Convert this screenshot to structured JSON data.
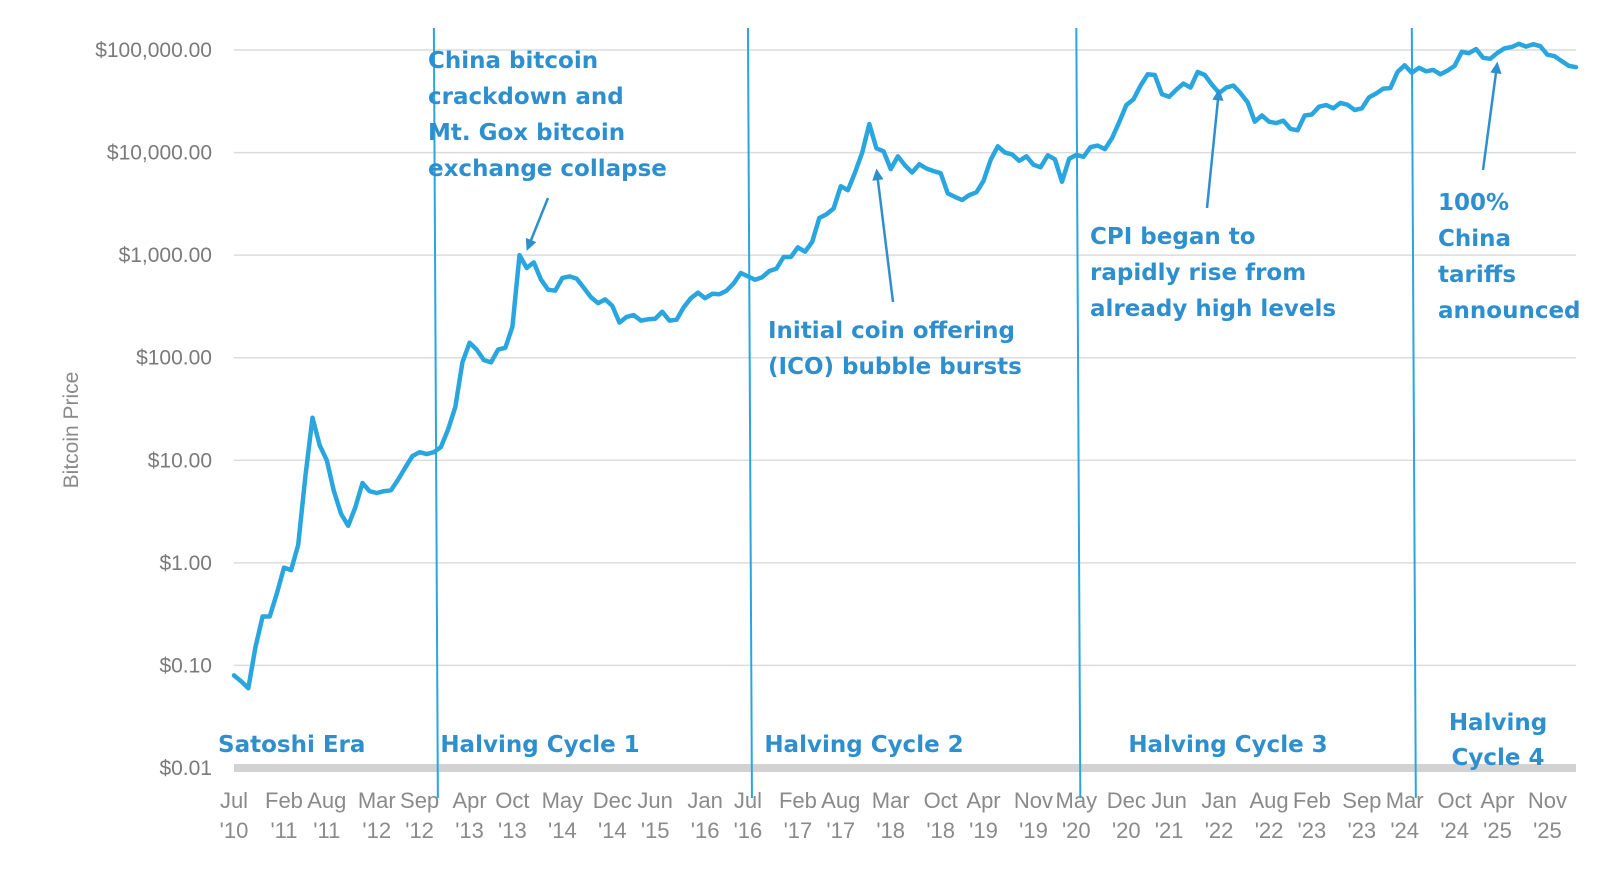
{
  "colors": {
    "line": "#2aa6df",
    "halving": "#2aa6df",
    "annotation": "#2e8fcf",
    "grid": "#dcdcdc",
    "baseline": "#d2d2d2"
  },
  "chart_data": {
    "type": "line",
    "ylabel": "Bitcoin Price",
    "yscale": "log",
    "ylim": [
      0.01,
      100000
    ],
    "xlim": [
      "2010-07",
      "2026-03"
    ],
    "grid": true,
    "y_ticks": [
      {
        "value": 100000,
        "label": "$100,000.00"
      },
      {
        "value": 10000,
        "label": "$10,000.00"
      },
      {
        "value": 1000,
        "label": "$1,000.00"
      },
      {
        "value": 100,
        "label": "$100.00"
      },
      {
        "value": 10,
        "label": "$10.00"
      },
      {
        "value": 1,
        "label": "$1.00"
      },
      {
        "value": 0.1,
        "label": "$0.10"
      },
      {
        "value": 0.01,
        "label": "$0.01"
      }
    ],
    "x_ticks": [
      {
        "date": "2010-07",
        "month": "Jul",
        "year": "'10"
      },
      {
        "date": "2011-02",
        "month": "Feb",
        "year": "'11"
      },
      {
        "date": "2011-08",
        "month": "Aug",
        "year": "'11"
      },
      {
        "date": "2012-03",
        "month": "Mar",
        "year": "'12"
      },
      {
        "date": "2012-09",
        "month": "Sep",
        "year": "'12"
      },
      {
        "date": "2013-04",
        "month": "Apr",
        "year": "'13"
      },
      {
        "date": "2013-10",
        "month": "Oct",
        "year": "'13"
      },
      {
        "date": "2014-05",
        "month": "May",
        "year": "'14"
      },
      {
        "date": "2014-12",
        "month": "Dec",
        "year": "'14"
      },
      {
        "date": "2015-06",
        "month": "Jun",
        "year": "'15"
      },
      {
        "date": "2016-01",
        "month": "Jan",
        "year": "'16"
      },
      {
        "date": "2016-07",
        "month": "Jul",
        "year": "'16"
      },
      {
        "date": "2017-02",
        "month": "Feb",
        "year": "'17"
      },
      {
        "date": "2017-08",
        "month": "Aug",
        "year": "'17"
      },
      {
        "date": "2018-03",
        "month": "Mar",
        "year": "'18"
      },
      {
        "date": "2018-10",
        "month": "Oct",
        "year": "'18"
      },
      {
        "date": "2019-04",
        "month": "Apr",
        "year": "'19"
      },
      {
        "date": "2019-11",
        "month": "Nov",
        "year": "'19"
      },
      {
        "date": "2020-05",
        "month": "May",
        "year": "'20"
      },
      {
        "date": "2020-12",
        "month": "Dec",
        "year": "'20"
      },
      {
        "date": "2021-06",
        "month": "Jun",
        "year": "'21"
      },
      {
        "date": "2022-01",
        "month": "Jan",
        "year": "'22"
      },
      {
        "date": "2022-08",
        "month": "Aug",
        "year": "'22"
      },
      {
        "date": "2023-02",
        "month": "Feb",
        "year": "'23"
      },
      {
        "date": "2023-09",
        "month": "Sep",
        "year": "'23"
      },
      {
        "date": "2024-03",
        "month": "Mar",
        "year": "'24"
      },
      {
        "date": "2024-10",
        "month": "Oct",
        "year": "'24"
      },
      {
        "date": "2025-04",
        "month": "Apr",
        "year": "'25"
      },
      {
        "date": "2025-11",
        "month": "Nov",
        "year": "'25"
      }
    ],
    "series": [
      {
        "points": [
          {
            "x": "2010-07",
            "y": 0.08
          },
          {
            "x": "2010-08",
            "y": 0.07
          },
          {
            "x": "2010-09",
            "y": 0.06
          },
          {
            "x": "2010-10",
            "y": 0.15
          },
          {
            "x": "2010-11",
            "y": 0.3
          },
          {
            "x": "2010-12",
            "y": 0.3
          },
          {
            "x": "2011-01",
            "y": 0.5
          },
          {
            "x": "2011-02",
            "y": 0.9
          },
          {
            "x": "2011-03",
            "y": 0.85
          },
          {
            "x": "2011-04",
            "y": 1.5
          },
          {
            "x": "2011-05",
            "y": 7
          },
          {
            "x": "2011-06",
            "y": 26
          },
          {
            "x": "2011-07",
            "y": 14
          },
          {
            "x": "2011-08",
            "y": 10
          },
          {
            "x": "2011-09",
            "y": 5
          },
          {
            "x": "2011-10",
            "y": 3
          },
          {
            "x": "2011-11",
            "y": 2.3
          },
          {
            "x": "2011-12",
            "y": 3.5
          },
          {
            "x": "2012-01",
            "y": 6
          },
          {
            "x": "2012-02",
            "y": 5
          },
          {
            "x": "2012-03",
            "y": 4.8
          },
          {
            "x": "2012-04",
            "y": 5
          },
          {
            "x": "2012-05",
            "y": 5.1
          },
          {
            "x": "2012-06",
            "y": 6.5
          },
          {
            "x": "2012-07",
            "y": 8.5
          },
          {
            "x": "2012-08",
            "y": 11
          },
          {
            "x": "2012-09",
            "y": 12
          },
          {
            "x": "2012-10",
            "y": 11.5
          },
          {
            "x": "2012-11",
            "y": 12
          },
          {
            "x": "2012-12",
            "y": 13.5
          },
          {
            "x": "2013-01",
            "y": 20
          },
          {
            "x": "2013-02",
            "y": 33
          },
          {
            "x": "2013-03",
            "y": 90
          },
          {
            "x": "2013-04",
            "y": 140
          },
          {
            "x": "2013-05",
            "y": 120
          },
          {
            "x": "2013-06",
            "y": 95
          },
          {
            "x": "2013-07",
            "y": 90
          },
          {
            "x": "2013-08",
            "y": 120
          },
          {
            "x": "2013-09",
            "y": 125
          },
          {
            "x": "2013-10",
            "y": 200
          },
          {
            "x": "2013-11",
            "y": 1000
          },
          {
            "x": "2013-12",
            "y": 750
          },
          {
            "x": "2014-01",
            "y": 850
          },
          {
            "x": "2014-02",
            "y": 580
          },
          {
            "x": "2014-03",
            "y": 460
          },
          {
            "x": "2014-04",
            "y": 450
          },
          {
            "x": "2014-05",
            "y": 600
          },
          {
            "x": "2014-06",
            "y": 620
          },
          {
            "x": "2014-07",
            "y": 590
          },
          {
            "x": "2014-08",
            "y": 480
          },
          {
            "x": "2014-09",
            "y": 390
          },
          {
            "x": "2014-10",
            "y": 340
          },
          {
            "x": "2014-11",
            "y": 370
          },
          {
            "x": "2014-12",
            "y": 320
          },
          {
            "x": "2015-01",
            "y": 220
          },
          {
            "x": "2015-02",
            "y": 250
          },
          {
            "x": "2015-03",
            "y": 260
          },
          {
            "x": "2015-04",
            "y": 230
          },
          {
            "x": "2015-05",
            "y": 237
          },
          {
            "x": "2015-06",
            "y": 240
          },
          {
            "x": "2015-07",
            "y": 280
          },
          {
            "x": "2015-08",
            "y": 230
          },
          {
            "x": "2015-09",
            "y": 235
          },
          {
            "x": "2015-10",
            "y": 310
          },
          {
            "x": "2015-11",
            "y": 380
          },
          {
            "x": "2015-12",
            "y": 430
          },
          {
            "x": "2016-01",
            "y": 380
          },
          {
            "x": "2016-02",
            "y": 420
          },
          {
            "x": "2016-03",
            "y": 415
          },
          {
            "x": "2016-04",
            "y": 450
          },
          {
            "x": "2016-05",
            "y": 530
          },
          {
            "x": "2016-06",
            "y": 670
          },
          {
            "x": "2016-07",
            "y": 620
          },
          {
            "x": "2016-08",
            "y": 575
          },
          {
            "x": "2016-09",
            "y": 610
          },
          {
            "x": "2016-10",
            "y": 700
          },
          {
            "x": "2016-11",
            "y": 740
          },
          {
            "x": "2016-12",
            "y": 960
          },
          {
            "x": "2017-01",
            "y": 960
          },
          {
            "x": "2017-02",
            "y": 1190
          },
          {
            "x": "2017-03",
            "y": 1080
          },
          {
            "x": "2017-04",
            "y": 1350
          },
          {
            "x": "2017-05",
            "y": 2300
          },
          {
            "x": "2017-06",
            "y": 2500
          },
          {
            "x": "2017-07",
            "y": 2850
          },
          {
            "x": "2017-08",
            "y": 4700
          },
          {
            "x": "2017-09",
            "y": 4300
          },
          {
            "x": "2017-10",
            "y": 6400
          },
          {
            "x": "2017-11",
            "y": 10000
          },
          {
            "x": "2017-12",
            "y": 19000
          },
          {
            "x": "2018-01",
            "y": 11000
          },
          {
            "x": "2018-02",
            "y": 10300
          },
          {
            "x": "2018-03",
            "y": 6900
          },
          {
            "x": "2018-04",
            "y": 9200
          },
          {
            "x": "2018-05",
            "y": 7500
          },
          {
            "x": "2018-06",
            "y": 6400
          },
          {
            "x": "2018-07",
            "y": 7700
          },
          {
            "x": "2018-08",
            "y": 7000
          },
          {
            "x": "2018-09",
            "y": 6600
          },
          {
            "x": "2018-10",
            "y": 6300
          },
          {
            "x": "2018-11",
            "y": 4000
          },
          {
            "x": "2018-12",
            "y": 3700
          },
          {
            "x": "2019-01",
            "y": 3450
          },
          {
            "x": "2019-02",
            "y": 3850
          },
          {
            "x": "2019-03",
            "y": 4100
          },
          {
            "x": "2019-04",
            "y": 5300
          },
          {
            "x": "2019-05",
            "y": 8500
          },
          {
            "x": "2019-06",
            "y": 11500
          },
          {
            "x": "2019-07",
            "y": 10000
          },
          {
            "x": "2019-08",
            "y": 9600
          },
          {
            "x": "2019-09",
            "y": 8300
          },
          {
            "x": "2019-10",
            "y": 9200
          },
          {
            "x": "2019-11",
            "y": 7600
          },
          {
            "x": "2019-12",
            "y": 7200
          },
          {
            "x": "2020-01",
            "y": 9400
          },
          {
            "x": "2020-02",
            "y": 8600
          },
          {
            "x": "2020-03",
            "y": 5200
          },
          {
            "x": "2020-04",
            "y": 8700
          },
          {
            "x": "2020-05",
            "y": 9500
          },
          {
            "x": "2020-06",
            "y": 9100
          },
          {
            "x": "2020-07",
            "y": 11300
          },
          {
            "x": "2020-08",
            "y": 11700
          },
          {
            "x": "2020-09",
            "y": 10800
          },
          {
            "x": "2020-10",
            "y": 13800
          },
          {
            "x": "2020-11",
            "y": 19700
          },
          {
            "x": "2020-12",
            "y": 29000
          },
          {
            "x": "2021-01",
            "y": 33000
          },
          {
            "x": "2021-02",
            "y": 45000
          },
          {
            "x": "2021-03",
            "y": 58000
          },
          {
            "x": "2021-04",
            "y": 57000
          },
          {
            "x": "2021-05",
            "y": 37000
          },
          {
            "x": "2021-06",
            "y": 35000
          },
          {
            "x": "2021-07",
            "y": 41000
          },
          {
            "x": "2021-08",
            "y": 47000
          },
          {
            "x": "2021-09",
            "y": 43000
          },
          {
            "x": "2021-10",
            "y": 61000
          },
          {
            "x": "2021-11",
            "y": 57000
          },
          {
            "x": "2021-12",
            "y": 46000
          },
          {
            "x": "2022-01",
            "y": 38000
          },
          {
            "x": "2022-02",
            "y": 43000
          },
          {
            "x": "2022-03",
            "y": 45000
          },
          {
            "x": "2022-04",
            "y": 38000
          },
          {
            "x": "2022-05",
            "y": 31000
          },
          {
            "x": "2022-06",
            "y": 20000
          },
          {
            "x": "2022-07",
            "y": 23000
          },
          {
            "x": "2022-08",
            "y": 20000
          },
          {
            "x": "2022-09",
            "y": 19400
          },
          {
            "x": "2022-10",
            "y": 20500
          },
          {
            "x": "2022-11",
            "y": 17000
          },
          {
            "x": "2022-12",
            "y": 16500
          },
          {
            "x": "2023-01",
            "y": 23000
          },
          {
            "x": "2023-02",
            "y": 23500
          },
          {
            "x": "2023-03",
            "y": 28000
          },
          {
            "x": "2023-04",
            "y": 29000
          },
          {
            "x": "2023-05",
            "y": 27000
          },
          {
            "x": "2023-06",
            "y": 30500
          },
          {
            "x": "2023-07",
            "y": 29200
          },
          {
            "x": "2023-08",
            "y": 26000
          },
          {
            "x": "2023-09",
            "y": 27000
          },
          {
            "x": "2023-10",
            "y": 34500
          },
          {
            "x": "2023-11",
            "y": 37700
          },
          {
            "x": "2023-12",
            "y": 42000
          },
          {
            "x": "2024-01",
            "y": 42500
          },
          {
            "x": "2024-02",
            "y": 61000
          },
          {
            "x": "2024-03",
            "y": 71000
          },
          {
            "x": "2024-04",
            "y": 60000
          },
          {
            "x": "2024-05",
            "y": 67000
          },
          {
            "x": "2024-06",
            "y": 62000
          },
          {
            "x": "2024-07",
            "y": 64000
          },
          {
            "x": "2024-08",
            "y": 58000
          },
          {
            "x": "2024-09",
            "y": 63000
          },
          {
            "x": "2024-10",
            "y": 70000
          },
          {
            "x": "2024-11",
            "y": 96000
          },
          {
            "x": "2024-12",
            "y": 93000
          },
          {
            "x": "2025-01",
            "y": 102000
          },
          {
            "x": "2025-02",
            "y": 84000
          },
          {
            "x": "2025-03",
            "y": 82000
          },
          {
            "x": "2025-04",
            "y": 94000
          },
          {
            "x": "2025-05",
            "y": 104000
          },
          {
            "x": "2025-06",
            "y": 107000
          },
          {
            "x": "2025-07",
            "y": 115000
          },
          {
            "x": "2025-08",
            "y": 108000
          },
          {
            "x": "2025-09",
            "y": 114000
          },
          {
            "x": "2025-10",
            "y": 109000
          },
          {
            "x": "2025-11",
            "y": 90000
          },
          {
            "x": "2025-12",
            "y": 87000
          },
          {
            "x": "2026-01",
            "y": 78000
          },
          {
            "x": "2026-02",
            "y": 70000
          },
          {
            "x": "2026-03",
            "y": 68000
          }
        ]
      }
    ],
    "halving_dates": [
      "2012-11",
      "2016-07",
      "2020-05",
      "2024-04"
    ],
    "cycle_labels": [
      {
        "lines": [
          "Satoshi Era"
        ],
        "x": "2011-06"
      },
      {
        "lines": [
          "Halving Cycle 1"
        ],
        "x": "2014-08"
      },
      {
        "lines": [
          "Halving Cycle 2"
        ],
        "x": "2018-03"
      },
      {
        "lines": [
          "Halving Cycle 3"
        ],
        "x": "2022-03"
      },
      {
        "lines": [
          "Halving",
          "Cycle 4"
        ],
        "x": "2025-04"
      }
    ],
    "annotations": [
      {
        "lines": [
          "China bitcoin",
          "crackdown and",
          "Mt. Gox bitcoin",
          "exchange collapse"
        ],
        "point": {
          "x": "2013-12",
          "y": 1100
        }
      },
      {
        "lines": [
          "Initial coin offering",
          "(ICO) bubble bursts"
        ],
        "point": {
          "x": "2018-01",
          "y": 7000
        }
      },
      {
        "lines": [
          "CPI began to",
          "rapidly rise from",
          "already high levels"
        ],
        "point": {
          "x": "2022-01",
          "y": 42000
        }
      },
      {
        "lines": [
          "100%",
          "China",
          "tariffs",
          "announced"
        ],
        "point": {
          "x": "2025-04",
          "y": 77000
        }
      }
    ]
  }
}
